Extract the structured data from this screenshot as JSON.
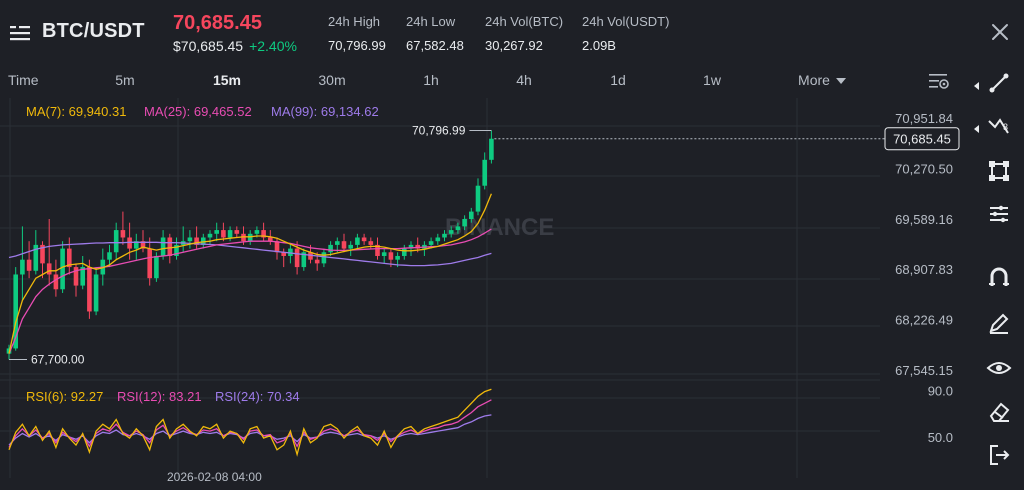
{
  "header": {
    "pair": "BTC/USDT",
    "last_price": "70,685.45",
    "price_usd": "$70,685.45",
    "change": "+2.40%",
    "stats": [
      {
        "label": "24h High",
        "value": "70,796.99"
      },
      {
        "label": "24h Low",
        "value": "67,582.48"
      },
      {
        "label": "24h Vol(BTC)",
        "value": "30,267.92"
      },
      {
        "label": "24h Vol(USDT)",
        "value": "2.09B"
      }
    ]
  },
  "intervals": {
    "time_label": "Time",
    "items": [
      "5m",
      "15m",
      "30m",
      "1h",
      "4h",
      "1d",
      "1w"
    ],
    "active": "15m",
    "more_label": "More"
  },
  "indicators": {
    "ma": [
      {
        "label": "MA(7): 69,940.31",
        "color": "#f0b90b"
      },
      {
        "label": "MA(25): 69,465.52",
        "color": "#e84cb3"
      },
      {
        "label": "MA(99): 69,134.62",
        "color": "#9e7bea"
      }
    ],
    "rsi": [
      {
        "label": "RSI(6): 92.27",
        "color": "#f0b90b"
      },
      {
        "label": "RSI(12): 83.21",
        "color": "#e84cb3"
      },
      {
        "label": "RSI(24): 70.34",
        "color": "#9e7bea"
      }
    ]
  },
  "watermark": "BINANCE",
  "chart_data": {
    "type": "candlestick",
    "price_ticks": [
      "70,951.84",
      "70,270.50",
      "69,589.16",
      "68,907.83",
      "68,226.49",
      "67,545.15"
    ],
    "price_axis_range": [
      67545.15,
      70951.84
    ],
    "current_price_label": "70,685.45",
    "current_price": 70685.45,
    "high_marker": {
      "label": "70,796.99",
      "value": 70796.99
    },
    "low_marker": {
      "label": "67,700.00",
      "value": 67700.0
    },
    "rsi_ticks": [
      "90.0",
      "50.0"
    ],
    "rsi_axis_range": [
      20,
      100
    ],
    "time_label": "2026-02-08 04:00",
    "colors": {
      "up": "#0ecb81",
      "down": "#f6465d"
    },
    "candles": [
      [
        67780,
        67900,
        67700,
        67850
      ],
      [
        67850,
        68950,
        67820,
        68850
      ],
      [
        68850,
        69500,
        68500,
        69050
      ],
      [
        69050,
        69300,
        68800,
        68900
      ],
      [
        68900,
        69450,
        68850,
        69250
      ],
      [
        69250,
        69300,
        68800,
        69000
      ],
      [
        69000,
        69600,
        68700,
        68850
      ],
      [
        68850,
        69050,
        68550,
        68650
      ],
      [
        68650,
        69300,
        68600,
        69200
      ],
      [
        69200,
        69350,
        68850,
        68950
      ],
      [
        68950,
        69000,
        68550,
        68700
      ],
      [
        68700,
        69100,
        68650,
        68950
      ],
      [
        68950,
        69050,
        68250,
        68350
      ],
      [
        68350,
        68950,
        68300,
        68850
      ],
      [
        68850,
        69200,
        68700,
        69050
      ],
      [
        69050,
        69250,
        68950,
        69150
      ],
      [
        69150,
        69550,
        69050,
        69450
      ],
      [
        69450,
        69700,
        69250,
        69350
      ],
      [
        69350,
        69550,
        69050,
        69200
      ],
      [
        69200,
        69400,
        69050,
        69300
      ],
      [
        69300,
        69450,
        69150,
        69200
      ],
      [
        69200,
        69350,
        68700,
        68800
      ],
      [
        68800,
        69150,
        68750,
        69100
      ],
      [
        69100,
        69450,
        69050,
        69350
      ],
      [
        69350,
        69400,
        69000,
        69100
      ],
      [
        69100,
        69350,
        69050,
        69250
      ],
      [
        69250,
        69500,
        69150,
        69300
      ],
      [
        69300,
        69450,
        69200,
        69350
      ],
      [
        69350,
        69500,
        69200,
        69250
      ],
      [
        69250,
        69400,
        69200,
        69350
      ],
      [
        69350,
        69450,
        69250,
        69400
      ],
      [
        69400,
        69550,
        69300,
        69450
      ],
      [
        69450,
        69550,
        69300,
        69350
      ],
      [
        69350,
        69500,
        69300,
        69450
      ],
      [
        69450,
        69500,
        69350,
        69400
      ],
      [
        69400,
        69500,
        69250,
        69300
      ],
      [
        69300,
        69450,
        69250,
        69400
      ],
      [
        69400,
        69500,
        69350,
        69450
      ],
      [
        69450,
        69550,
        69300,
        69350
      ],
      [
        69350,
        69450,
        69250,
        69300
      ],
      [
        69300,
        69350,
        69050,
        69150
      ],
      [
        69150,
        69200,
        68950,
        69100
      ],
      [
        69100,
        69250,
        69000,
        69200
      ],
      [
        69200,
        69300,
        68850,
        68950
      ],
      [
        68950,
        69200,
        68900,
        69150
      ],
      [
        69150,
        69250,
        69000,
        69050
      ],
      [
        69050,
        69150,
        68900,
        69000
      ],
      [
        69000,
        69200,
        68950,
        69150
      ],
      [
        69150,
        69300,
        69100,
        69250
      ],
      [
        69250,
        69350,
        69150,
        69300
      ],
      [
        69300,
        69400,
        69150,
        69200
      ],
      [
        69200,
        69300,
        69100,
        69250
      ],
      [
        69250,
        69400,
        69200,
        69350
      ],
      [
        69350,
        69400,
        69250,
        69300
      ],
      [
        69300,
        69350,
        69200,
        69250
      ],
      [
        69250,
        69350,
        69050,
        69100
      ],
      [
        69100,
        69200,
        69000,
        69150
      ],
      [
        69150,
        69200,
        68950,
        69050
      ],
      [
        69050,
        69150,
        68950,
        69100
      ],
      [
        69100,
        69250,
        69050,
        69200
      ],
      [
        69200,
        69300,
        69100,
        69250
      ],
      [
        69250,
        69350,
        69150,
        69200
      ],
      [
        69200,
        69300,
        69100,
        69250
      ],
      [
        69250,
        69350,
        69200,
        69300
      ],
      [
        69300,
        69400,
        69250,
        69350
      ],
      [
        69350,
        69450,
        69300,
        69400
      ],
      [
        69400,
        69500,
        69350,
        69450
      ],
      [
        69450,
        69550,
        69400,
        69500
      ],
      [
        69500,
        69650,
        69450,
        69600
      ],
      [
        69600,
        69750,
        69550,
        69700
      ],
      [
        69700,
        70150,
        69650,
        70050
      ],
      [
        70050,
        70500,
        70000,
        70400
      ],
      [
        70400,
        70797,
        70350,
        70685
      ]
    ],
    "ma7": [
      67780,
      68200,
      68500,
      68650,
      68800,
      68850,
      68900,
      68900,
      68950,
      68980,
      68990,
      69000,
      68950,
      68920,
      68940,
      68980,
      69050,
      69100,
      69150,
      69180,
      69220,
      69200,
      69180,
      69200,
      69210,
      69220,
      69240,
      69260,
      69280,
      69290,
      69300,
      69320,
      69330,
      69340,
      69350,
      69360,
      69360,
      69370,
      69370,
      69360,
      69340,
      69300,
      69260,
      69220,
      69180,
      69150,
      69120,
      69110,
      69120,
      69140,
      69160,
      69180,
      69200,
      69220,
      69230,
      69230,
      69220,
      69200,
      69180,
      69170,
      69170,
      69180,
      69190,
      69210,
      69230,
      69260,
      69290,
      69320,
      69370,
      69430,
      69540,
      69720,
      69940
    ],
    "ma25": [
      67780,
      68000,
      68250,
      68400,
      68550,
      68650,
      68720,
      68780,
      68830,
      68870,
      68900,
      68920,
      68930,
      68940,
      68950,
      68960,
      68980,
      69000,
      69020,
      69040,
      69060,
      69080,
      69090,
      69100,
      69110,
      69130,
      69150,
      69170,
      69190,
      69210,
      69230,
      69250,
      69260,
      69270,
      69280,
      69290,
      69300,
      69300,
      69300,
      69300,
      69290,
      69280,
      69270,
      69250,
      69230,
      69210,
      69200,
      69190,
      69180,
      69175,
      69175,
      69180,
      69185,
      69190,
      69195,
      69200,
      69200,
      69200,
      69200,
      69205,
      69210,
      69215,
      69220,
      69225,
      69230,
      69240,
      69250,
      69270,
      69290,
      69320,
      69360,
      69410,
      69465
    ],
    "ma99": [
      69080,
      69100,
      69130,
      69160,
      69190,
      69210,
      69230,
      69240,
      69250,
      69255,
      69260,
      69265,
      69270,
      69275,
      69275,
      69280,
      69280,
      69280,
      69285,
      69285,
      69285,
      69285,
      69285,
      69280,
      69280,
      69280,
      69275,
      69270,
      69265,
      69260,
      69255,
      69250,
      69240,
      69230,
      69220,
      69210,
      69200,
      69190,
      69180,
      69170,
      69160,
      69150,
      69140,
      69130,
      69120,
      69110,
      69100,
      69090,
      69080,
      69070,
      69060,
      69050,
      69040,
      69030,
      69020,
      69010,
      69000,
      68990,
      68980,
      68975,
      68970,
      68970,
      68970,
      68975,
      68980,
      68990,
      69000,
      69020,
      69040,
      69060,
      69080,
      69110,
      69135
    ],
    "rsi6": [
      40,
      55,
      62,
      52,
      60,
      48,
      56,
      42,
      58,
      50,
      44,
      54,
      38,
      56,
      62,
      58,
      66,
      54,
      50,
      58,
      52,
      40,
      60,
      66,
      50,
      58,
      62,
      56,
      52,
      60,
      58,
      62,
      50,
      56,
      54,
      46,
      58,
      60,
      50,
      52,
      40,
      44,
      56,
      36,
      58,
      46,
      50,
      60,
      62,
      58,
      50,
      56,
      60,
      52,
      50,
      44,
      56,
      42,
      52,
      58,
      60,
      54,
      58,
      60,
      62,
      64,
      66,
      68,
      74,
      80,
      86,
      90,
      92
    ],
    "rsi12": [
      42,
      52,
      58,
      52,
      57,
      50,
      54,
      46,
      55,
      51,
      47,
      53,
      43,
      54,
      58,
      56,
      62,
      55,
      52,
      56,
      53,
      46,
      57,
      61,
      52,
      56,
      59,
      55,
      53,
      57,
      56,
      58,
      52,
      55,
      54,
      49,
      56,
      57,
      52,
      53,
      46,
      48,
      54,
      43,
      55,
      49,
      51,
      56,
      58,
      56,
      52,
      55,
      57,
      53,
      52,
      48,
      54,
      47,
      52,
      55,
      57,
      54,
      56,
      58,
      59,
      61,
      62,
      64,
      68,
      72,
      77,
      80,
      83
    ],
    "rsi24": [
      44,
      50,
      54,
      51,
      54,
      50,
      52,
      48,
      53,
      51,
      49,
      52,
      46,
      52,
      55,
      54,
      57,
      53,
      52,
      54,
      52,
      49,
      54,
      56,
      52,
      54,
      56,
      54,
      53,
      55,
      54,
      55,
      52,
      54,
      53,
      50,
      54,
      55,
      52,
      52,
      49,
      50,
      52,
      47,
      53,
      50,
      51,
      54,
      55,
      54,
      52,
      53,
      54,
      52,
      52,
      50,
      52,
      49,
      51,
      53,
      54,
      53,
      54,
      55,
      56,
      57,
      58,
      59,
      62,
      64,
      67,
      69,
      70
    ]
  }
}
